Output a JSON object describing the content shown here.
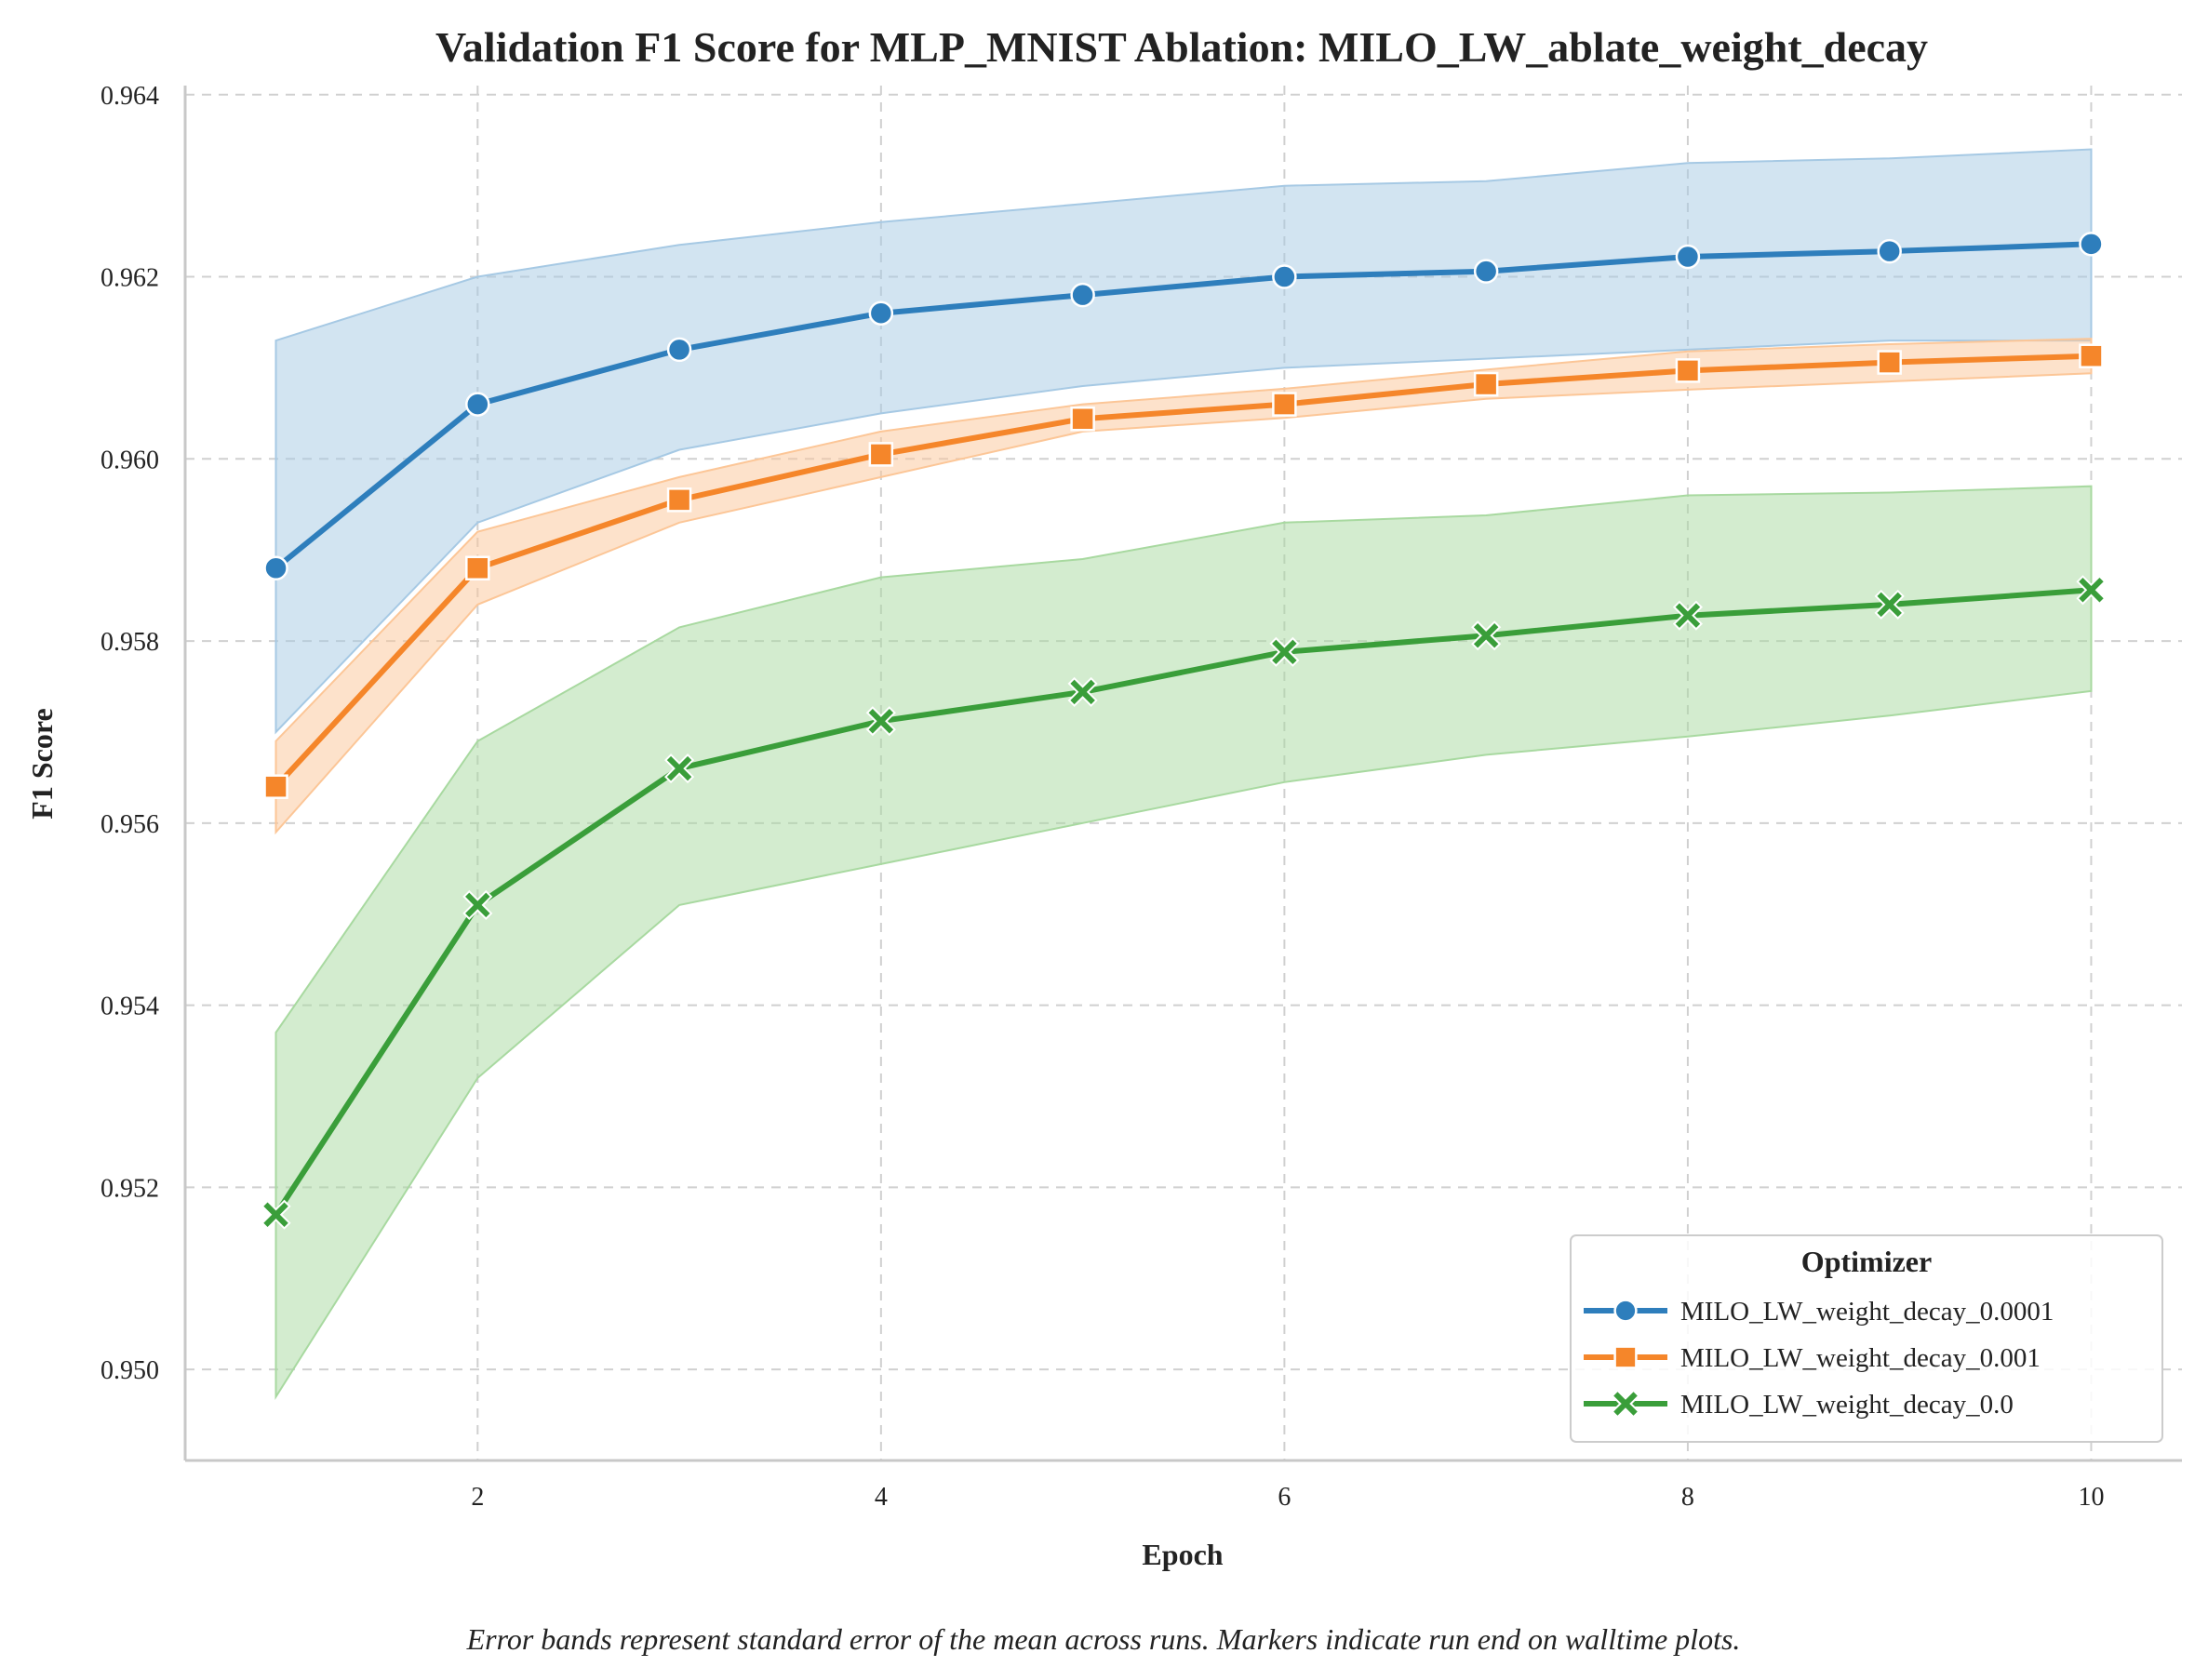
{
  "chart_data": {
    "type": "line",
    "title": "Validation F1 Score for MLP_MNIST Ablation: MILO_LW_ablate_weight_decay",
    "xlabel": "Epoch",
    "ylabel": "F1 Score",
    "xlim": [
      0.55,
      10.45
    ],
    "ylim": [
      0.949,
      0.9641
    ],
    "xticks": [
      2,
      4,
      6,
      8,
      10
    ],
    "yticks": [
      0.95,
      0.952,
      0.954,
      0.956,
      0.958,
      0.96,
      0.962,
      0.964
    ],
    "ytick_labels": [
      "0.950",
      "0.952",
      "0.954",
      "0.956",
      "0.958",
      "0.960",
      "0.962",
      "0.964"
    ],
    "grid": true,
    "legend": {
      "title": "Optimizer",
      "placement": "lower-right"
    },
    "caption": "Error bands represent standard error of the mean across runs. Markers indicate run end on walltime plots.",
    "x": [
      1,
      2,
      3,
      4,
      5,
      6,
      7,
      8,
      9,
      10
    ],
    "series": [
      {
        "name": "MILO_LW_weight_decay_0.0001",
        "color": "#2e7ebc",
        "band_color": "#a6c9e4",
        "marker": "circle",
        "values": [
          0.9588,
          0.9606,
          0.9612,
          0.9616,
          0.9618,
          0.962,
          0.96206,
          0.96222,
          0.96228,
          0.96236
        ],
        "upper": [
          0.9613,
          0.962,
          0.96235,
          0.9626,
          0.9628,
          0.963,
          0.96305,
          0.96325,
          0.9633,
          0.9634
        ],
        "lower": [
          0.957,
          0.9593,
          0.9601,
          0.9605,
          0.9608,
          0.961,
          0.9611,
          0.9612,
          0.9613,
          0.9613
        ]
      },
      {
        "name": "MILO_LW_weight_decay_0.001",
        "color": "#f5862a",
        "band_color": "#fcc697",
        "marker": "square",
        "values": [
          0.9564,
          0.9588,
          0.95955,
          0.96005,
          0.96044,
          0.9606,
          0.96082,
          0.96097,
          0.96106,
          0.96113
        ],
        "upper": [
          0.9569,
          0.9592,
          0.9598,
          0.9603,
          0.9606,
          0.96077,
          0.96098,
          0.96118,
          0.96126,
          0.96132
        ],
        "lower": [
          0.9559,
          0.9584,
          0.9593,
          0.9598,
          0.9603,
          0.96045,
          0.96066,
          0.96076,
          0.96085,
          0.96094
        ]
      },
      {
        "name": "MILO_LW_weight_decay_0.0",
        "color": "#3a9e3a",
        "band_color": "#a8d9a0",
        "marker": "x",
        "values": [
          0.9517,
          0.9551,
          0.9566,
          0.95712,
          0.95744,
          0.95788,
          0.95806,
          0.95828,
          0.9584,
          0.95856
        ],
        "upper": [
          0.9537,
          0.9569,
          0.95815,
          0.9587,
          0.9589,
          0.9593,
          0.95938,
          0.9596,
          0.95963,
          0.9597
        ],
        "lower": [
          0.9497,
          0.9532,
          0.9551,
          0.95555,
          0.956,
          0.95645,
          0.95675,
          0.95695,
          0.95718,
          0.95745
        ]
      }
    ]
  }
}
